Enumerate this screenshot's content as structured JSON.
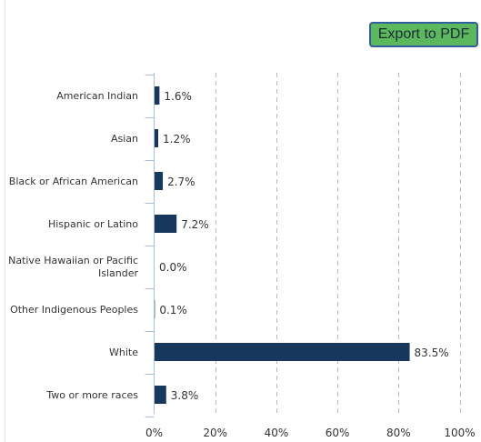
{
  "toolbar": {
    "export_label": "Export to PDF"
  },
  "colors": {
    "bar": "#17375e",
    "button_bg": "#5cb85c",
    "button_border": "#2f5f9e",
    "grid": "#b8b8b8",
    "axis": "#a9bedb"
  },
  "chart_data": {
    "type": "bar",
    "orientation": "horizontal",
    "categories": [
      [
        "American Indian"
      ],
      [
        "Asian"
      ],
      [
        "Black or African American"
      ],
      [
        "Hispanic or Latino"
      ],
      [
        "Native Hawaiian or Pacific",
        "Islander"
      ],
      [
        "Other Indigenous Peoples"
      ],
      [
        "White"
      ],
      [
        "Two or more races"
      ]
    ],
    "values": [
      1.6,
      1.2,
      2.7,
      7.2,
      0.0,
      0.1,
      83.5,
      3.8
    ],
    "value_labels": [
      "1.6%",
      "1.2%",
      "2.7%",
      "7.2%",
      "0.0%",
      "0.1%",
      "83.5%",
      "3.8%"
    ],
    "xlim": [
      0,
      100
    ],
    "x_ticks": [
      0,
      20,
      40,
      60,
      80,
      100
    ],
    "x_tick_labels": [
      "0%",
      "20%",
      "40%",
      "60%",
      "80%",
      "100%"
    ],
    "grid": "vertical-dashed",
    "legend": "none"
  }
}
